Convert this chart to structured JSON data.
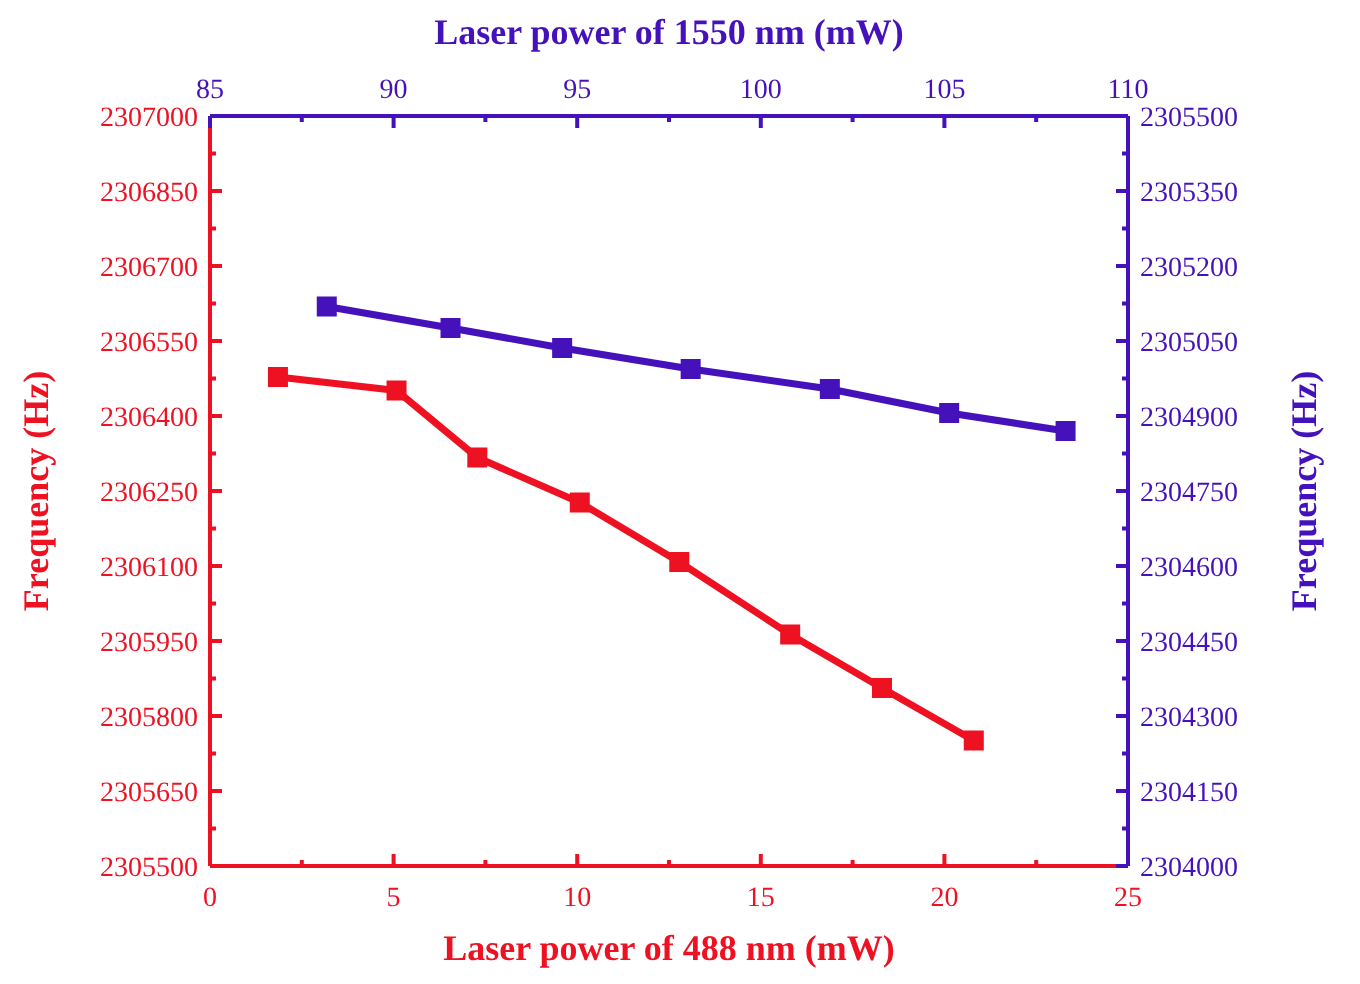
{
  "chart_data": [
    {
      "type": "line",
      "xlabel": "Laser power of 488 nm (mW)",
      "ylabel": "Frequency (Hz)",
      "xlim": [
        0,
        25
      ],
      "xticks": [
        0,
        5,
        10,
        15,
        20,
        25
      ],
      "ylim": [
        2305500,
        2307000
      ],
      "yticks": [
        2305500,
        2305650,
        2305800,
        2305950,
        2306100,
        2306250,
        2306400,
        2306550,
        2306700,
        2306850,
        2307000
      ],
      "marker": "square",
      "grid": false,
      "series": [
        {
          "color": "#ee1122",
          "x": [
            1.85,
            5.08,
            7.28,
            10.07,
            12.78,
            15.8,
            18.3,
            20.8
          ],
          "values": [
            2306478,
            2306451,
            2306317,
            2306227,
            2306108,
            2305963,
            2305856,
            2305751
          ]
        }
      ]
    },
    {
      "type": "line",
      "xlabel": "Laser power of 1550 nm (mW)",
      "ylabel": "Frequency (Hz)",
      "xlim": [
        85,
        110
      ],
      "xticks": [
        85,
        90,
        95,
        100,
        105,
        110
      ],
      "ylim": [
        2304000,
        2305500
      ],
      "yticks": [
        2304000,
        2304150,
        2304300,
        2304450,
        2304600,
        2304750,
        2304900,
        2305050,
        2305200,
        2305350,
        2305500
      ],
      "marker": "square",
      "grid": false,
      "series": [
        {
          "color": "#4411bb",
          "x": [
            88.18,
            91.55,
            94.59,
            98.09,
            101.88,
            105.13,
            108.3
          ],
          "values": [
            2305119,
            2305076,
            2305036,
            2304994,
            2304954,
            2304906,
            2304870
          ]
        }
      ]
    }
  ]
}
